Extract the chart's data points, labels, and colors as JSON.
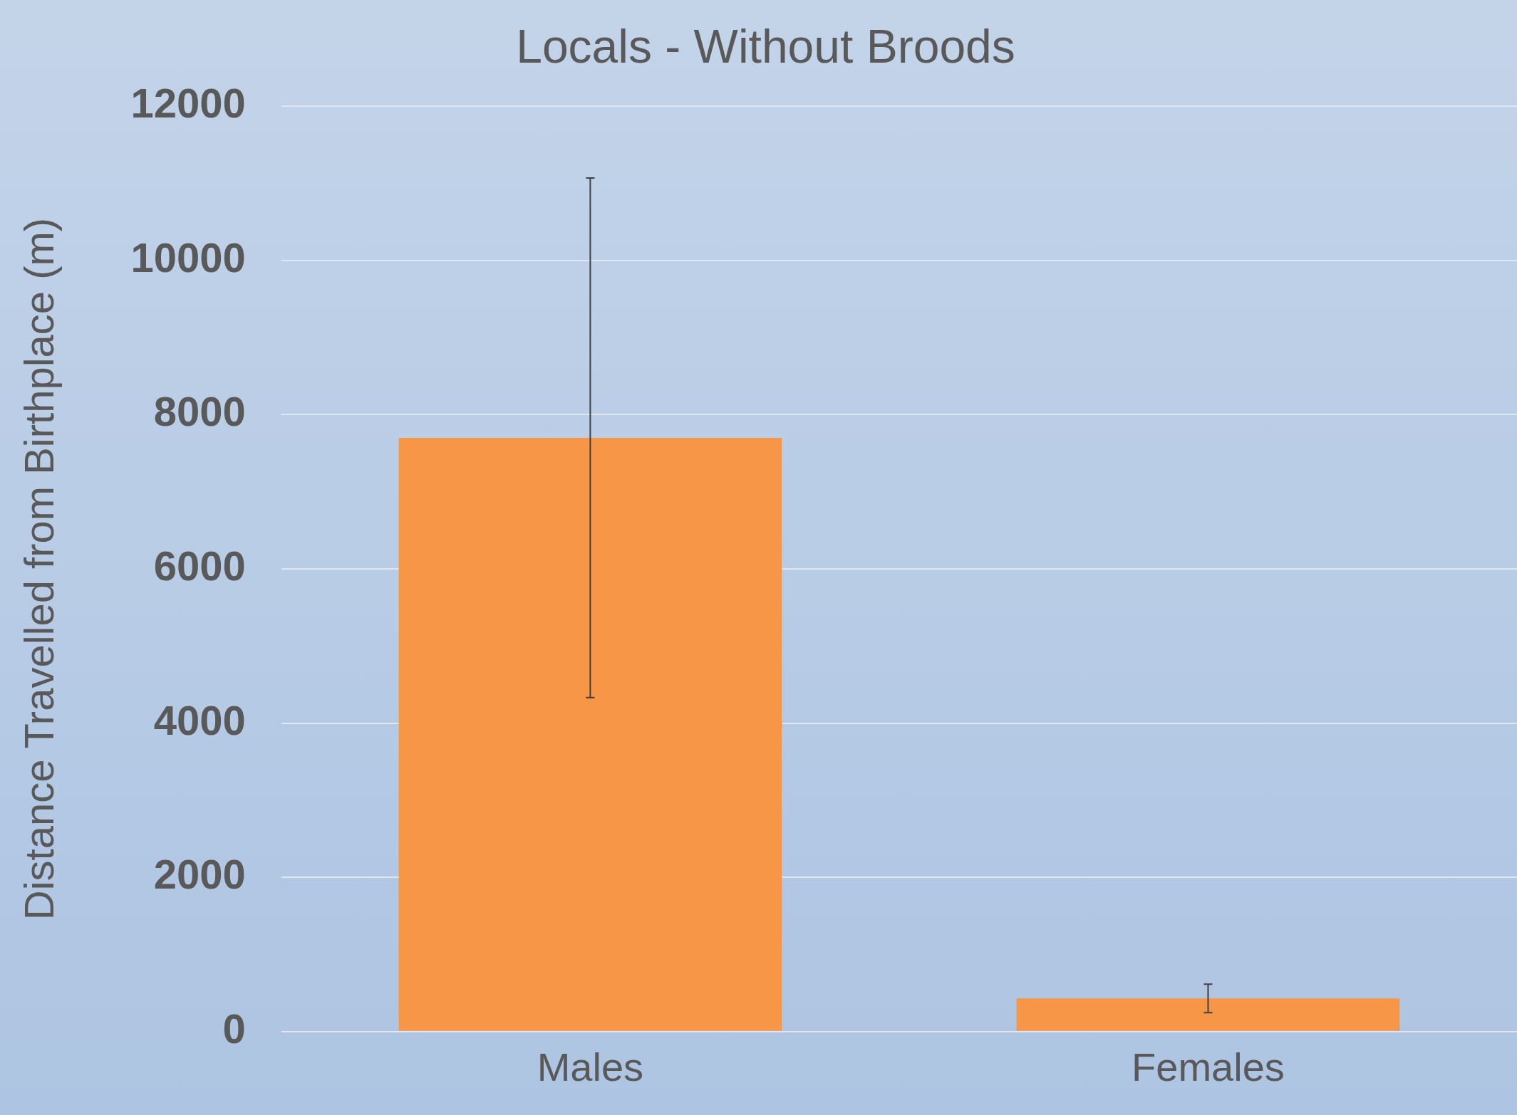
{
  "chart_data": {
    "type": "bar",
    "title": "Locals - Without Broods",
    "ylabel": "Distance Travelled from Birthplace (m)",
    "categories": [
      "Males",
      "Females"
    ],
    "values": [
      7700,
      430
    ],
    "errors": [
      3370,
      185
    ],
    "color": "#f79646",
    "ylim": [
      0,
      12000
    ],
    "yticks": [
      0,
      2000,
      4000,
      6000,
      8000,
      10000,
      12000
    ],
    "grid": "y",
    "legend": false
  }
}
